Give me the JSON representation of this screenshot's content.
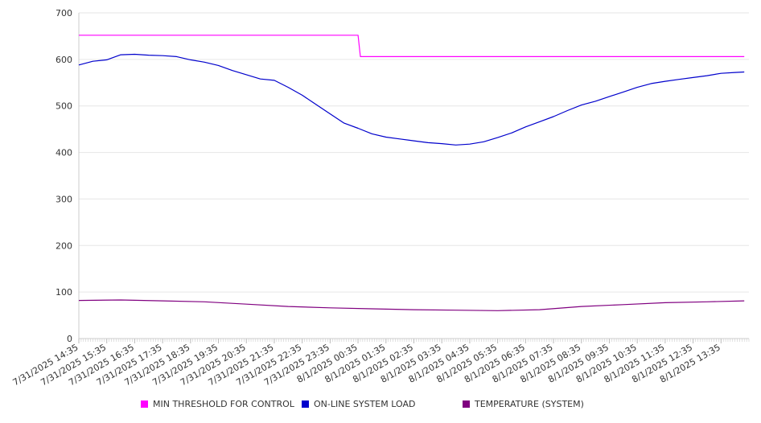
{
  "chart_data": {
    "type": "line",
    "ylim": [
      0,
      700
    ],
    "yticks": [
      0,
      100,
      200,
      300,
      400,
      500,
      600,
      700
    ],
    "grid": true,
    "legend_position": "bottom",
    "x_tick_labels": [
      "7/31/2025 14:35",
      "7/31/2025 15:35",
      "7/31/2025 16:35",
      "7/31/2025 17:35",
      "7/31/2025 18:35",
      "7/31/2025 19:35",
      "7/31/2025 20:35",
      "7/31/2025 21:35",
      "7/31/2025 22:35",
      "7/31/2025 23:35",
      "8/1/2025 00:35",
      "8/1/2025 01:35",
      "8/1/2025 02:35",
      "8/1/2025 03:35",
      "8/1/2025 04:35",
      "8/1/2025 05:35",
      "8/1/2025 06:35",
      "8/1/2025 07:35",
      "8/1/2025 08:35",
      "8/1/2025 09:35",
      "8/1/2025 10:35",
      "8/1/2025 11:35",
      "8/1/2025 12:35",
      "8/1/2025 13:35"
    ],
    "series": [
      {
        "name": "MIN THRESHOLD FOR CONTROL",
        "color": "#ff00ff",
        "x": [
          "7/31/2025 14:35",
          "8/1/2025 00:35",
          "8/1/2025 00:40",
          "8/1/2025 14:25"
        ],
        "values": [
          652,
          652,
          606,
          606
        ]
      },
      {
        "name": "ON-LINE SYSTEM LOAD",
        "color": "#0000cc",
        "x": [
          "7/31/2025 14:35",
          "7/31/2025 15:05",
          "7/31/2025 15:35",
          "7/31/2025 16:05",
          "7/31/2025 16:35",
          "7/31/2025 17:05",
          "7/31/2025 17:35",
          "7/31/2025 18:05",
          "7/31/2025 18:35",
          "7/31/2025 19:05",
          "7/31/2025 19:35",
          "7/31/2025 20:05",
          "7/31/2025 20:35",
          "7/31/2025 21:05",
          "7/31/2025 21:35",
          "7/31/2025 22:05",
          "7/31/2025 22:35",
          "7/31/2025 23:05",
          "7/31/2025 23:35",
          "8/1/2025 00:05",
          "8/1/2025 00:35",
          "8/1/2025 01:05",
          "8/1/2025 01:35",
          "8/1/2025 02:05",
          "8/1/2025 02:35",
          "8/1/2025 03:05",
          "8/1/2025 03:35",
          "8/1/2025 04:05",
          "8/1/2025 04:35",
          "8/1/2025 05:05",
          "8/1/2025 05:35",
          "8/1/2025 06:05",
          "8/1/2025 06:35",
          "8/1/2025 07:05",
          "8/1/2025 07:35",
          "8/1/2025 08:05",
          "8/1/2025 08:35",
          "8/1/2025 09:05",
          "8/1/2025 09:35",
          "8/1/2025 10:05",
          "8/1/2025 10:35",
          "8/1/2025 11:05",
          "8/1/2025 11:35",
          "8/1/2025 12:05",
          "8/1/2025 12:35",
          "8/1/2025 13:05",
          "8/1/2025 13:35",
          "8/1/2025 14:05",
          "8/1/2025 14:25"
        ],
        "values": [
          588,
          596,
          599,
          610,
          611,
          609,
          608,
          606,
          599,
          594,
          587,
          576,
          567,
          558,
          555,
          540,
          523,
          503,
          483,
          463,
          452,
          440,
          433,
          429,
          425,
          421,
          419,
          416,
          418,
          423,
          432,
          442,
          455,
          466,
          477,
          490,
          502,
          510,
          520,
          530,
          540,
          548,
          553,
          557,
          561,
          565,
          570,
          572,
          573
        ]
      },
      {
        "name": "TEMPERATURE (SYSTEM)",
        "color": "#800080",
        "x": [
          "7/31/2025 14:35",
          "7/31/2025 16:05",
          "7/31/2025 17:35",
          "7/31/2025 19:05",
          "7/31/2025 20:35",
          "7/31/2025 22:05",
          "7/31/2025 23:35",
          "8/1/2025 01:05",
          "8/1/2025 02:35",
          "8/1/2025 04:05",
          "8/1/2025 05:35",
          "8/1/2025 07:05",
          "8/1/2025 08:35",
          "8/1/2025 10:05",
          "8/1/2025 11:35",
          "8/1/2025 13:05",
          "8/1/2025 14:25"
        ],
        "values": [
          82,
          83,
          81,
          79,
          74,
          69,
          66,
          64,
          62,
          61,
          60,
          62,
          69,
          73,
          77,
          79,
          81
        ]
      }
    ]
  }
}
